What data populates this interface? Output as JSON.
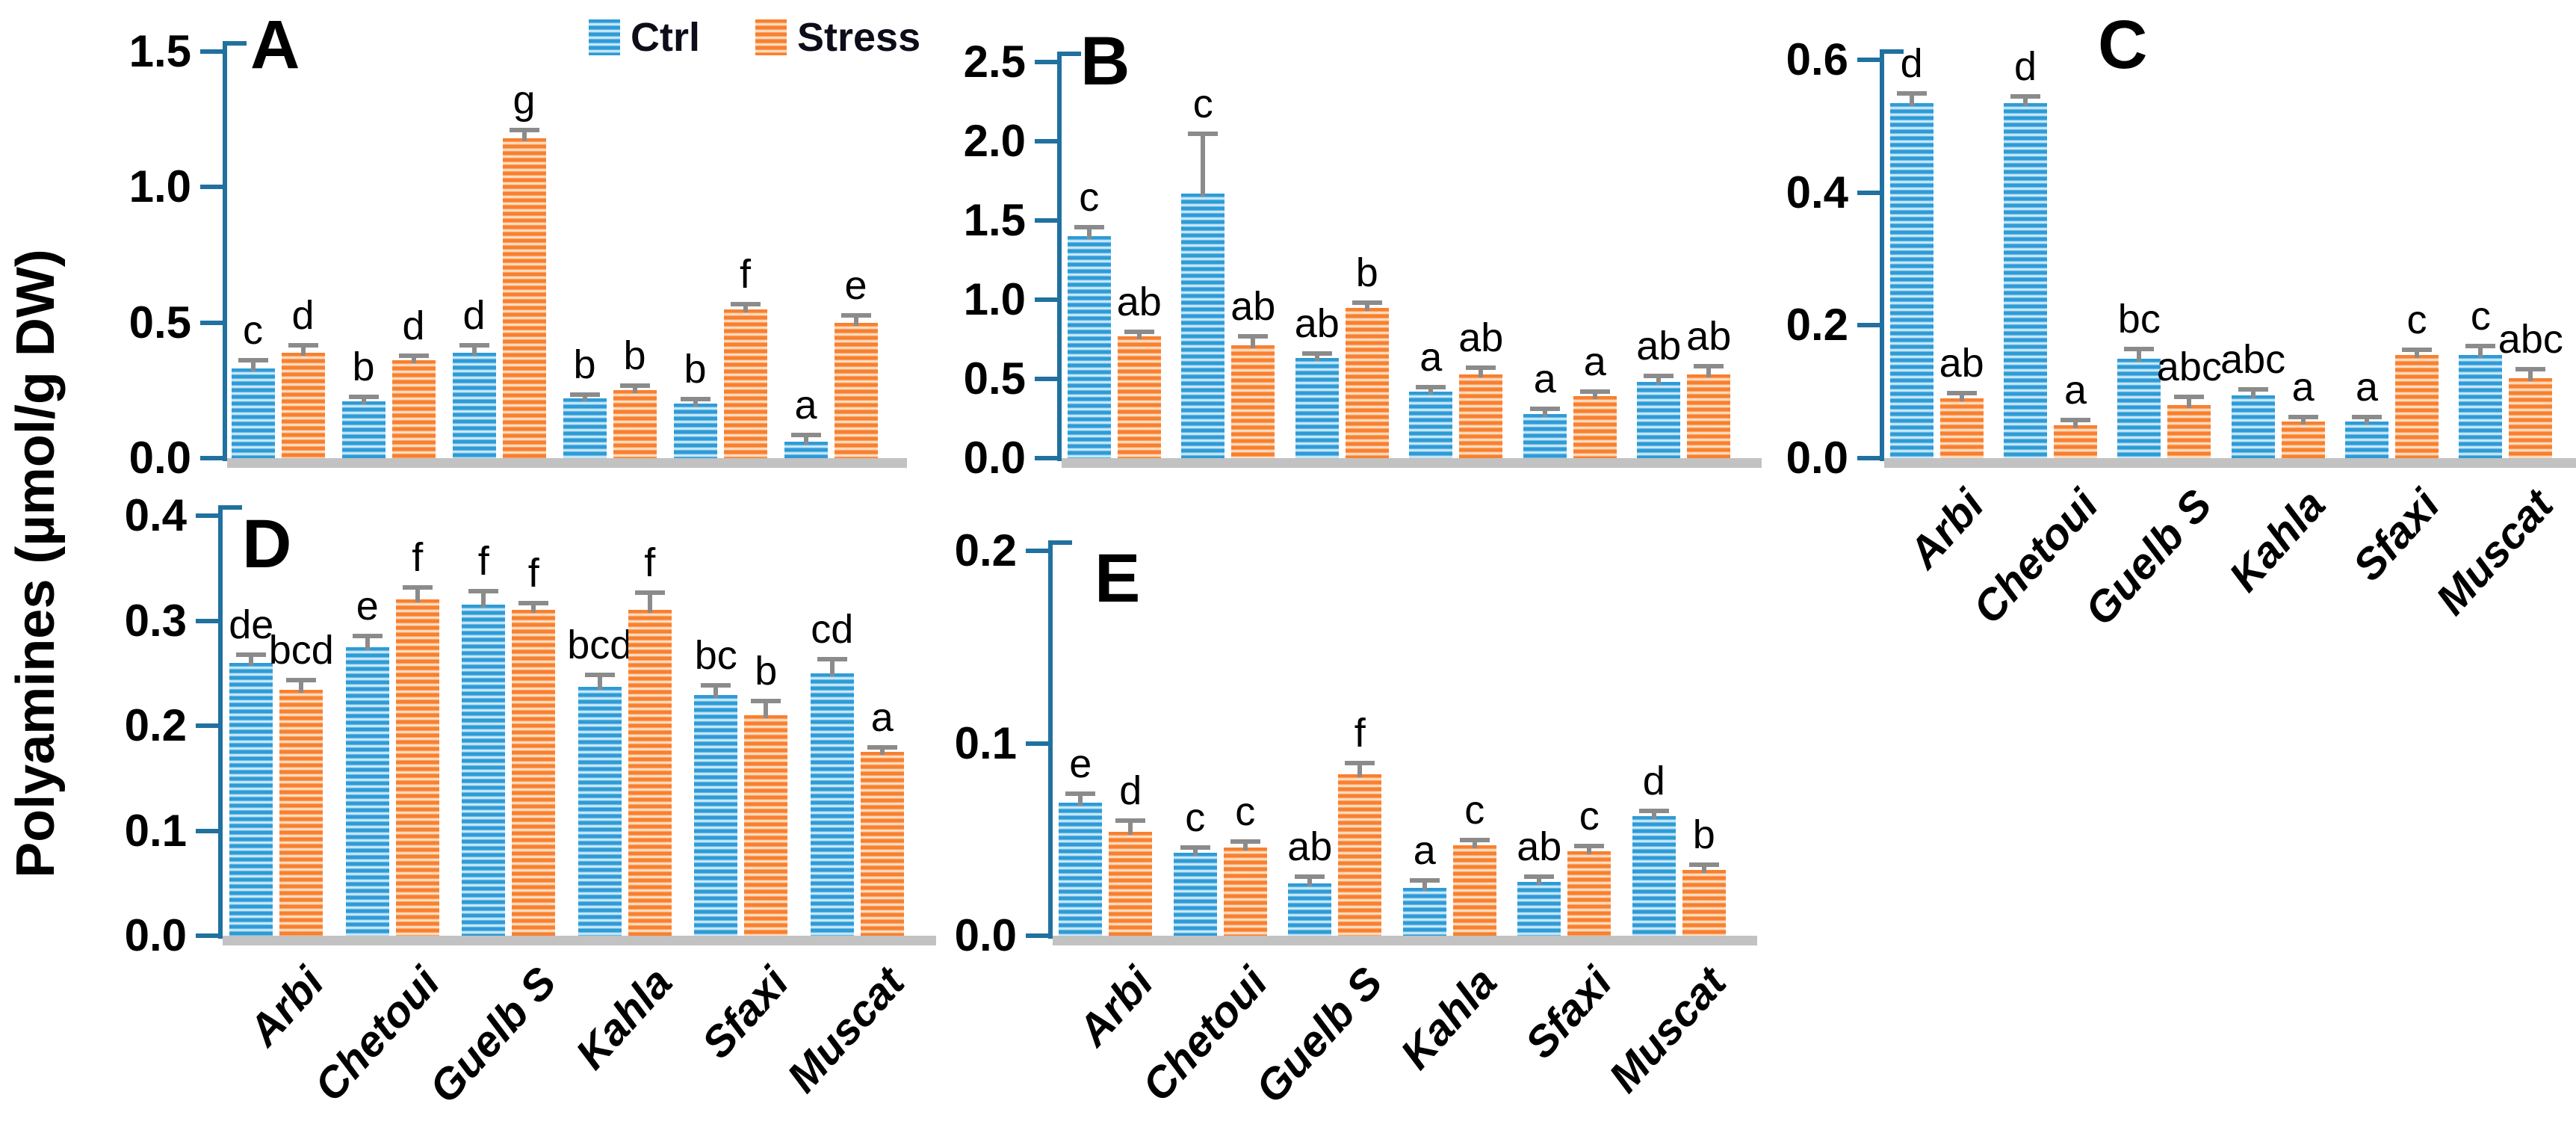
{
  "figure": {
    "ylabel": "Polyamines (µmol/g DW)",
    "legend": {
      "position": "top-center",
      "items": [
        {
          "label": "Ctrl",
          "key": "ctrl"
        },
        {
          "label": "Stress",
          "key": "stress"
        }
      ]
    },
    "colors": {
      "ctrl": "#2E9BD6",
      "ctrl_stripe_light": "#DCF0FB",
      "stress": "#F8802F",
      "stress_stripe_light": "#FEEADA",
      "axis": "#20719F",
      "error_bar": "#8B8B8B",
      "baseline": "#C2C2C2",
      "text": "#000000"
    }
  },
  "chart_data": [
    {
      "panel": "A",
      "type": "bar",
      "ylim": [
        0,
        1.5
      ],
      "yticks": [
        "0.0",
        "0.5",
        "1.0",
        "1.5"
      ],
      "grid": false,
      "categories": [
        "Arbi",
        "Chetoui",
        "Guelb S",
        "Kahla",
        "Sfaxi",
        "Muscat"
      ],
      "show_xlabels": false,
      "series": [
        {
          "name": "Ctrl",
          "values": [
            0.33,
            0.21,
            0.39,
            0.22,
            0.2,
            0.06
          ],
          "errors": [
            0.025,
            0.01,
            0.02,
            0.01,
            0.012,
            0.02
          ],
          "letters": [
            "c",
            "b",
            "d",
            "b",
            "b",
            "a"
          ]
        },
        {
          "name": "Stress",
          "values": [
            0.39,
            0.36,
            1.18,
            0.25,
            0.55,
            0.5
          ],
          "errors": [
            0.02,
            0.012,
            0.025,
            0.012,
            0.012,
            0.02
          ],
          "letters": [
            "d",
            "d",
            "g",
            "b",
            "f",
            "e"
          ]
        }
      ]
    },
    {
      "panel": "B",
      "type": "bar",
      "ylim": [
        0,
        2.5
      ],
      "yticks": [
        "0.0",
        "0.5",
        "1.0",
        "1.5",
        "2.0",
        "2.5"
      ],
      "grid": false,
      "categories": [
        "Arbi",
        "Chetoui",
        "Guelb S",
        "Kahla",
        "Sfaxi",
        "Muscat"
      ],
      "show_xlabels": false,
      "series": [
        {
          "name": "Ctrl",
          "values": [
            1.4,
            1.67,
            0.63,
            0.42,
            0.28,
            0.48
          ],
          "errors": [
            0.05,
            0.37,
            0.02,
            0.02,
            0.02,
            0.03
          ],
          "letters": [
            "c",
            "c",
            "ab",
            "a",
            "a",
            "ab"
          ]
        },
        {
          "name": "Stress",
          "values": [
            0.77,
            0.71,
            0.95,
            0.53,
            0.39,
            0.53
          ],
          "errors": [
            0.02,
            0.05,
            0.02,
            0.03,
            0.02,
            0.04
          ],
          "letters": [
            "ab",
            "ab",
            "b",
            "ab",
            "a",
            "ab"
          ]
        }
      ]
    },
    {
      "panel": "C",
      "type": "bar",
      "ylim": [
        0,
        0.6
      ],
      "yticks": [
        "0.0",
        "0.2",
        "0.4",
        "0.6"
      ],
      "grid": false,
      "categories": [
        "Arbi",
        "Chetoui",
        "Guelb S",
        "Kahla",
        "Sfaxi",
        "Muscat"
      ],
      "show_xlabels": true,
      "series": [
        {
          "name": "Ctrl",
          "values": [
            0.535,
            0.535,
            0.15,
            0.095,
            0.055,
            0.155
          ],
          "errors": [
            0.012,
            0.008,
            0.012,
            0.006,
            0.005,
            0.012
          ],
          "letters": [
            "d",
            "d",
            "bc",
            "abc",
            "a",
            "c"
          ]
        },
        {
          "name": "Stress",
          "values": [
            0.09,
            0.05,
            0.08,
            0.055,
            0.155,
            0.12
          ],
          "errors": [
            0.006,
            0.005,
            0.01,
            0.005,
            0.006,
            0.012
          ],
          "letters": [
            "ab",
            "a",
            "abc",
            "a",
            "c",
            "abc"
          ]
        }
      ]
    },
    {
      "panel": "D",
      "type": "bar",
      "ylim": [
        0,
        0.4
      ],
      "yticks": [
        "0.0",
        "0.1",
        "0.2",
        "0.3",
        "0.4"
      ],
      "grid": false,
      "categories": [
        "Arbi",
        "Chetoui",
        "Guelb S",
        "Kahla",
        "Sfaxi",
        "Muscat"
      ],
      "show_xlabels": true,
      "series": [
        {
          "name": "Ctrl",
          "values": [
            0.26,
            0.275,
            0.315,
            0.237,
            0.229,
            0.25
          ],
          "errors": [
            0.006,
            0.009,
            0.012,
            0.01,
            0.008,
            0.012
          ],
          "letters": [
            "de",
            "e",
            "f",
            "bcd",
            "bc",
            "cd"
          ]
        },
        {
          "name": "Stress",
          "values": [
            0.234,
            0.32,
            0.31,
            0.31,
            0.21,
            0.175
          ],
          "errors": [
            0.008,
            0.01,
            0.005,
            0.015,
            0.012,
            0.003
          ],
          "letters": [
            "bcd",
            "f",
            "f",
            "f",
            "b",
            "a"
          ]
        }
      ]
    },
    {
      "panel": "E",
      "type": "bar",
      "ylim": [
        0,
        0.2
      ],
      "yticks": [
        "0.0",
        "0.1",
        "0.2"
      ],
      "grid": false,
      "categories": [
        "Arbi",
        "Chetoui",
        "Guelb S",
        "Kahla",
        "Sfaxi",
        "Muscat"
      ],
      "show_xlabels": true,
      "series": [
        {
          "name": "Ctrl",
          "values": [
            0.069,
            0.043,
            0.027,
            0.025,
            0.028,
            0.062
          ],
          "errors": [
            0.004,
            0.002,
            0.003,
            0.003,
            0.002,
            0.002
          ],
          "letters": [
            "e",
            "c",
            "ab",
            "a",
            "ab",
            "d"
          ]
        },
        {
          "name": "Stress",
          "values": [
            0.054,
            0.046,
            0.084,
            0.047,
            0.044,
            0.034
          ],
          "errors": [
            0.005,
            0.002,
            0.005,
            0.002,
            0.002,
            0.002
          ],
          "letters": [
            "d",
            "c",
            "f",
            "c",
            "c",
            "b"
          ]
        }
      ]
    }
  ]
}
